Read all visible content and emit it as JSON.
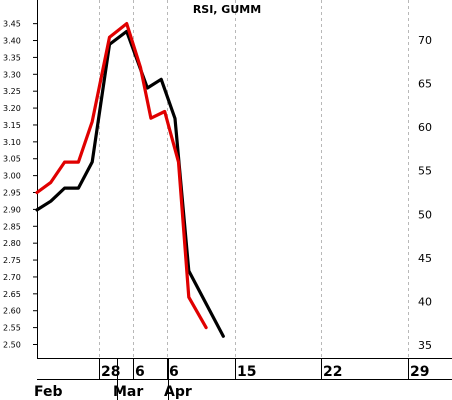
{
  "chart_data": {
    "type": "line",
    "title": "RSI, GUMM",
    "x_tick_labels": [
      "28",
      "6",
      "6",
      "15",
      "22",
      "29"
    ],
    "month_labels": [
      "Feb",
      "Mar",
      "Apr"
    ],
    "left_axis": {
      "ticks": [
        "2.50",
        "2.55",
        "2.60",
        "2.65",
        "2.70",
        "2.75",
        "2.80",
        "2.85",
        "2.90",
        "2.95",
        "3.00",
        "3.05",
        "3.10",
        "3.15",
        "3.20",
        "3.25",
        "3.30",
        "3.35",
        "3.40",
        "3.45"
      ],
      "ylim": [
        2.46,
        3.52
      ]
    },
    "right_axis": {
      "ticks": [
        "35",
        "40",
        "45",
        "50",
        "55",
        "60",
        "65",
        "70"
      ],
      "ylim": [
        33.5,
        74.6
      ]
    },
    "series": [
      {
        "color": "#e00000",
        "axis": "left",
        "points": [
          {
            "x": 0.0,
            "y": 2.95
          },
          {
            "x": 2.0,
            "y": 2.98
          },
          {
            "x": 4.0,
            "y": 3.04
          },
          {
            "x": 6.0,
            "y": 3.04
          },
          {
            "x": 8.0,
            "y": 3.16
          },
          {
            "x": 10.5,
            "y": 3.41
          },
          {
            "x": 13.0,
            "y": 3.45
          },
          {
            "x": 15.0,
            "y": 3.32
          },
          {
            "x": 16.5,
            "y": 3.17
          },
          {
            "x": 18.5,
            "y": 3.19
          },
          {
            "x": 20.5,
            "y": 3.04
          },
          {
            "x": 22.0,
            "y": 2.64
          },
          {
            "x": 24.5,
            "y": 2.55
          }
        ]
      },
      {
        "color": "#000000",
        "axis": "right",
        "points": [
          {
            "x": 0.0,
            "y": 50.5
          },
          {
            "x": 2.0,
            "y": 51.5
          },
          {
            "x": 4.0,
            "y": 53.0
          },
          {
            "x": 6.0,
            "y": 53.0
          },
          {
            "x": 8.0,
            "y": 56.0
          },
          {
            "x": 10.5,
            "y": 69.5
          },
          {
            "x": 13.0,
            "y": 71.0
          },
          {
            "x": 16.0,
            "y": 64.5
          },
          {
            "x": 18.0,
            "y": 65.5
          },
          {
            "x": 20.0,
            "y": 61.0
          },
          {
            "x": 22.0,
            "y": 43.5
          },
          {
            "x": 27.0,
            "y": 36.0
          }
        ]
      }
    ],
    "grid": {
      "vertical": true,
      "horizontal": false
    },
    "legend": "none"
  }
}
